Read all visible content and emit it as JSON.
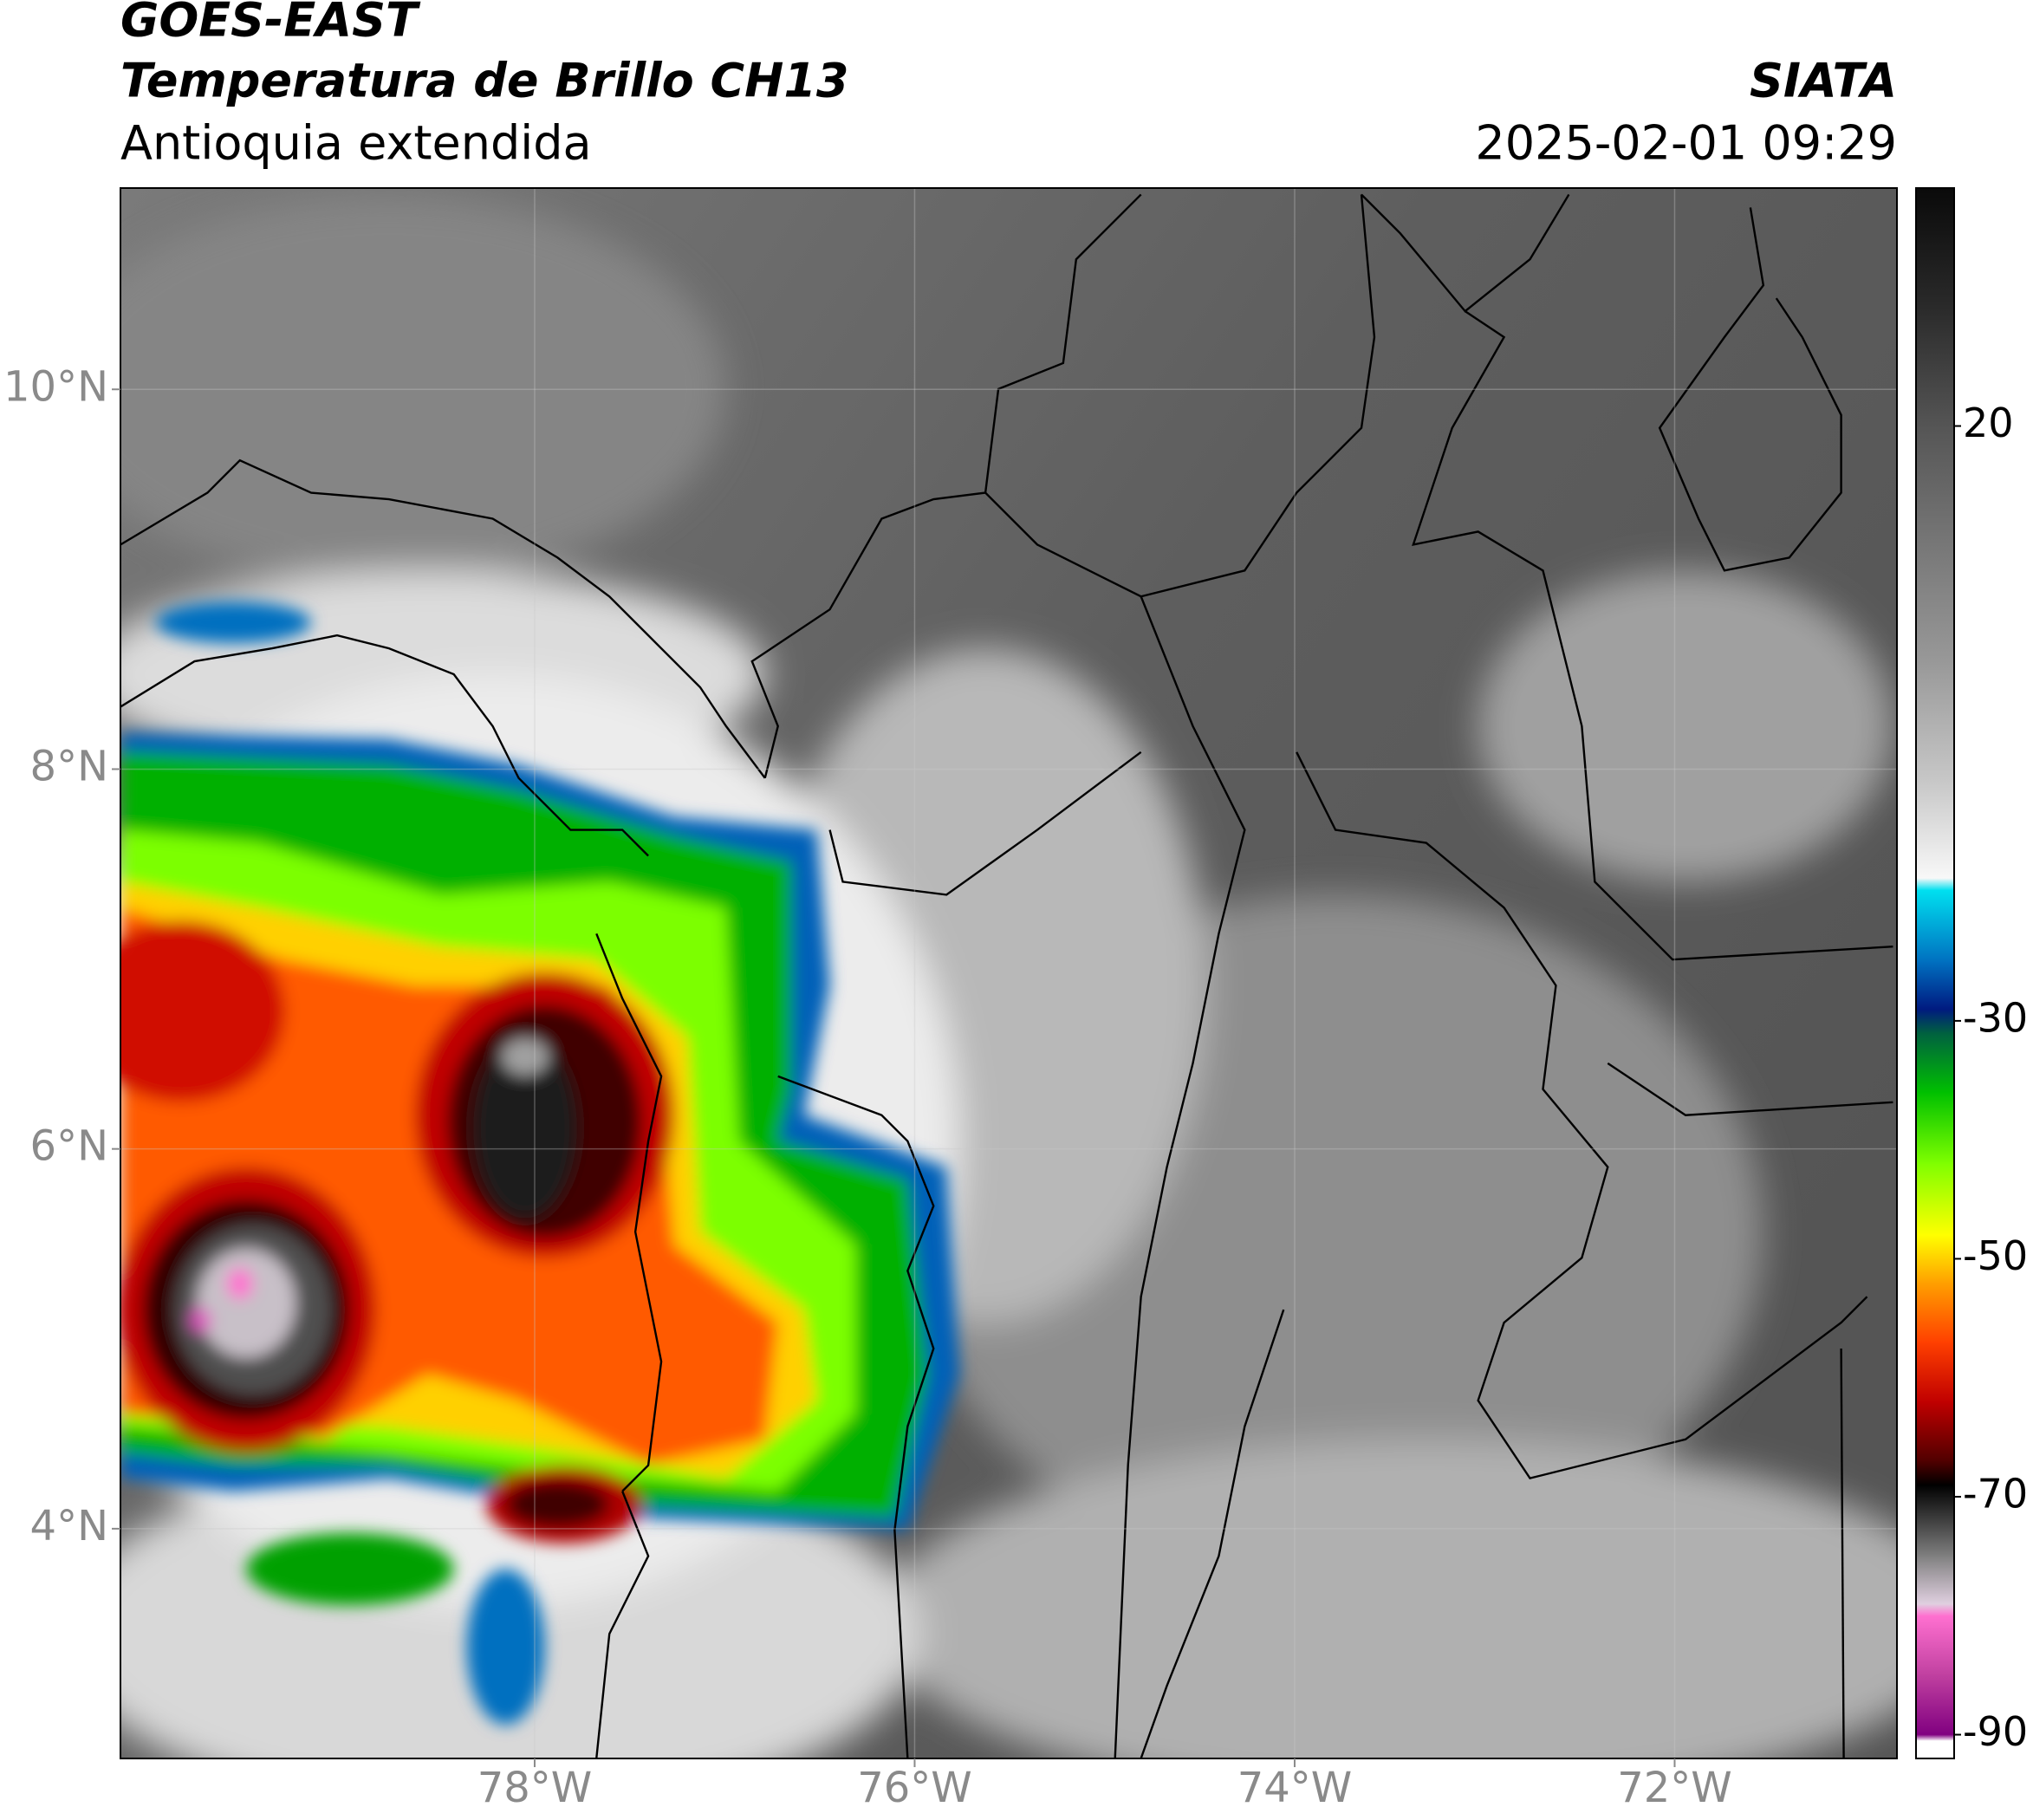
{
  "header": {
    "title": "GOES-EAST",
    "subtitle": "Temperatura de Brillo CH13",
    "region": "Antioquia extendida",
    "source": "SIATA",
    "datetime": "2025-02-01 09:29"
  },
  "map": {
    "xlim": [
      -80.18,
      -70.83
    ],
    "ylim": [
      2.79,
      11.06
    ],
    "xticks": [
      {
        "value": -78,
        "label": "78°W"
      },
      {
        "value": -76,
        "label": "76°W"
      },
      {
        "value": -74,
        "label": "74°W"
      },
      {
        "value": -72,
        "label": "72°W"
      }
    ],
    "yticks": [
      {
        "value": 10,
        "label": "10°N"
      },
      {
        "value": 8,
        "label": "8°N"
      },
      {
        "value": 6,
        "label": "6°N"
      },
      {
        "value": 4,
        "label": "4°N"
      }
    ],
    "grid": true
  },
  "colorbar": {
    "lim": [
      -92,
      40
    ],
    "ticks": [
      20,
      -30,
      -50,
      -70,
      -90
    ],
    "colormap": [
      {
        "value": 40,
        "color": "#0a0a0a"
      },
      {
        "value": 30,
        "color": "#2a2a2a"
      },
      {
        "value": 20,
        "color": "#555555"
      },
      {
        "value": 0,
        "color": "#999999"
      },
      {
        "value": -10,
        "color": "#c8c8c8"
      },
      {
        "value": -18,
        "color": "#f8f8f8"
      },
      {
        "value": -19,
        "color": "#00e0f0"
      },
      {
        "value": -25,
        "color": "#0070c0"
      },
      {
        "value": -29,
        "color": "#001a80"
      },
      {
        "value": -31,
        "color": "#006040"
      },
      {
        "value": -36,
        "color": "#00c000"
      },
      {
        "value": -42,
        "color": "#80ff00"
      },
      {
        "value": -48,
        "color": "#ffff00"
      },
      {
        "value": -52,
        "color": "#ffa000"
      },
      {
        "value": -57,
        "color": "#ff4000"
      },
      {
        "value": -62,
        "color": "#c00000"
      },
      {
        "value": -67,
        "color": "#500000"
      },
      {
        "value": -69,
        "color": "#000000"
      },
      {
        "value": -75,
        "color": "#808080"
      },
      {
        "value": -79,
        "color": "#e0d0e0"
      },
      {
        "value": -80,
        "color": "#ff70d0"
      },
      {
        "value": -85,
        "color": "#c040a0"
      },
      {
        "value": -90,
        "color": "#800080"
      },
      {
        "value": -90.5,
        "color": "#ffffff"
      },
      {
        "value": -92,
        "color": "#ffffff"
      }
    ]
  }
}
